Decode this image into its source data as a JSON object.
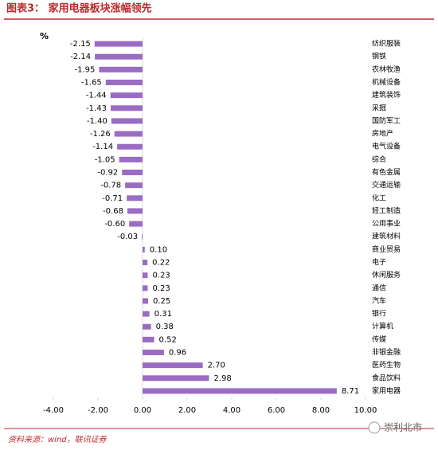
{
  "chart_data": {
    "type": "hbar",
    "title": "图表3：  家用电器板块涨幅领先",
    "unit": "%",
    "source": "资料来源：wind，联讯证券",
    "watermark": "崇利北市",
    "categories": [
      "纺织服装",
      "钢铁",
      "农林牧渔",
      "机械设备",
      "建筑装饰",
      "采掘",
      "国防军工",
      "房地产",
      "电气设备",
      "综合",
      "有色金属",
      "交通运输",
      "化工",
      "轻工制造",
      "公用事业",
      "建筑材料",
      "商业贸易",
      "电子",
      "休闲服务",
      "通信",
      "汽车",
      "银行",
      "计算机",
      "传媒",
      "非银金融",
      "医药生物",
      "食品饮料",
      "家用电器"
    ],
    "values": [
      -2.15,
      -2.14,
      -1.95,
      -1.65,
      -1.44,
      -1.43,
      -1.4,
      -1.26,
      -1.14,
      -1.05,
      -0.92,
      -0.78,
      -0.71,
      -0.68,
      -0.6,
      -0.03,
      0.1,
      0.22,
      0.23,
      0.23,
      0.25,
      0.31,
      0.38,
      0.52,
      0.96,
      2.7,
      2.98,
      8.71
    ],
    "value_labels": [
      "-2.15",
      "-2.14",
      "-1.95",
      "-1.65",
      "-1.44",
      "-1.43",
      "-1.40",
      "-1.26",
      "-1.14",
      "-1.05",
      "-0.92",
      "-0.78",
      "-0.71",
      "-0.68",
      "-0.60",
      "-0.03",
      "0.10",
      "0.22",
      "0.23",
      "0.23",
      "0.25",
      "0.31",
      "0.38",
      "0.52",
      "0.96",
      "2.70",
      "2.98",
      "8.71"
    ],
    "color": "#9b6cc3",
    "title_color": "#c0272d",
    "xlim": [
      -4,
      10
    ],
    "xticks": [
      {
        "value": -4,
        "label": "-4.00"
      },
      {
        "value": -2,
        "label": "-2.00"
      },
      {
        "value": 0,
        "label": "0.00"
      },
      {
        "value": 2,
        "label": "2.00"
      },
      {
        "value": 4,
        "label": "4.00"
      },
      {
        "value": 6,
        "label": "6.00"
      },
      {
        "value": 8,
        "label": "8.00"
      },
      {
        "value": 10,
        "label": "10.00"
      }
    ]
  }
}
